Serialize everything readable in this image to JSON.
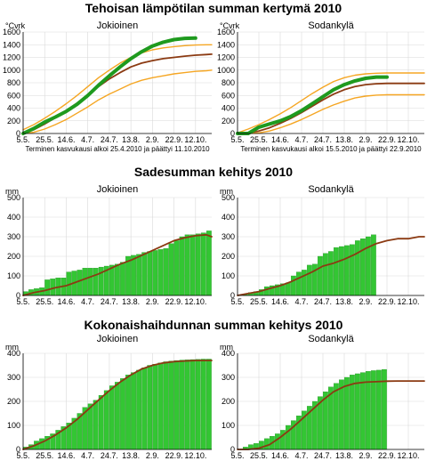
{
  "colors": {
    "green_line": "#1e9a1e",
    "brown": "#8b3a12",
    "orange": "#f5a623",
    "grid": "#d9d9d9",
    "bar": "#33c633",
    "bar_edge": "#1a8c1a",
    "axis": "#000000"
  },
  "chart_data": [
    {
      "type": "line",
      "title": "Tehoisan lämpötilan summan kertymä 2010",
      "ylabel": "°Cvrk",
      "ylim": [
        0,
        1600
      ],
      "yticks": [
        0,
        200,
        400,
        600,
        800,
        1000,
        1200,
        1400,
        1600
      ],
      "xlim": [
        0,
        175
      ],
      "xtick_labels": [
        "5.5.",
        "25.5.",
        "14.6.",
        "4.7.",
        "24.7.",
        "13.8.",
        "2.9.",
        "22.9.",
        "12.10."
      ],
      "xtick_days": [
        0,
        20,
        40,
        60,
        80,
        100,
        120,
        140,
        160
      ],
      "grid": true,
      "panels": [
        {
          "name": "Jokioinen",
          "note": "Terminen kasvukausi alkoi 25.4.2010 ja päättyi 11.10.2010",
          "series": [
            {
              "role": "mean",
              "color": "brown",
              "x": [
                0,
                10,
                20,
                30,
                40,
                50,
                60,
                70,
                80,
                90,
                100,
                110,
                120,
                130,
                140,
                150,
                160,
                170,
                175
              ],
              "y": [
                0,
                60,
                150,
                250,
                360,
                480,
                610,
                740,
                860,
                960,
                1050,
                1110,
                1150,
                1180,
                1200,
                1220,
                1235,
                1245,
                1250
              ]
            },
            {
              "role": "max",
              "color": "orange",
              "x": [
                0,
                10,
                20,
                30,
                40,
                50,
                60,
                70,
                80,
                90,
                100,
                110,
                120,
                130,
                140,
                150,
                160,
                170,
                175
              ],
              "y": [
                60,
                140,
                240,
                350,
                470,
                600,
                740,
                880,
                1000,
                1110,
                1200,
                1270,
                1320,
                1350,
                1370,
                1385,
                1395,
                1400,
                1400
              ]
            },
            {
              "role": "min",
              "color": "orange",
              "x": [
                0,
                10,
                20,
                30,
                40,
                50,
                60,
                70,
                80,
                90,
                100,
                110,
                120,
                130,
                140,
                150,
                160,
                170,
                175
              ],
              "y": [
                0,
                20,
                70,
                140,
                220,
                320,
                420,
                530,
                620,
                700,
                780,
                840,
                880,
                910,
                940,
                960,
                980,
                990,
                1000
              ]
            },
            {
              "role": "year",
              "color": "green_line",
              "x": [
                0,
                10,
                20,
                30,
                40,
                50,
                60,
                70,
                80,
                90,
                100,
                110,
                120,
                130,
                140,
                150,
                160
              ],
              "y": [
                0,
                80,
                180,
                260,
                350,
                460,
                600,
                760,
                910,
                1050,
                1180,
                1290,
                1380,
                1440,
                1480,
                1500,
                1505
              ]
            }
          ]
        },
        {
          "name": "Sodankylä",
          "note": "Terminen kasvukausi alkoi 15.5.2010 ja päättyi 22.9.2010",
          "series": [
            {
              "role": "mean",
              "color": "brown",
              "x": [
                0,
                10,
                20,
                30,
                40,
                50,
                60,
                70,
                80,
                90,
                100,
                110,
                120,
                130,
                140,
                150,
                160,
                175
              ],
              "y": [
                0,
                10,
                40,
                90,
                160,
                240,
                330,
                430,
                530,
                620,
                690,
                740,
                770,
                785,
                790,
                790,
                790,
                790
              ]
            },
            {
              "role": "max",
              "color": "orange",
              "x": [
                0,
                10,
                20,
                30,
                40,
                50,
                60,
                70,
                80,
                90,
                100,
                110,
                120,
                130,
                140,
                150,
                160,
                175
              ],
              "y": [
                10,
                70,
                140,
                220,
                310,
                410,
                520,
                630,
                730,
                820,
                880,
                920,
                940,
                950,
                955,
                955,
                955,
                955
              ]
            },
            {
              "role": "min",
              "color": "orange",
              "x": [
                0,
                10,
                20,
                30,
                40,
                50,
                60,
                70,
                80,
                90,
                100,
                110,
                120,
                130,
                140,
                150,
                160,
                175
              ],
              "y": [
                0,
                0,
                10,
                40,
                90,
                150,
                220,
                300,
                380,
                450,
                510,
                560,
                590,
                605,
                610,
                610,
                610,
                610
              ]
            },
            {
              "role": "year",
              "color": "green_line",
              "x": [
                0,
                10,
                20,
                30,
                40,
                50,
                60,
                70,
                80,
                90,
                100,
                110,
                120,
                130,
                140
              ],
              "y": [
                0,
                0,
                100,
                150,
                200,
                270,
                360,
                470,
                580,
                690,
                770,
                830,
                870,
                890,
                890
              ]
            }
          ]
        }
      ]
    },
    {
      "type": "bar",
      "title": "Sadesumman kehitys 2010",
      "ylabel": "mm",
      "ylim": [
        0,
        500
      ],
      "yticks": [
        0,
        100,
        200,
        300,
        400,
        500
      ],
      "xlim": [
        0,
        175
      ],
      "xtick_labels": [
        "5.5.",
        "25.5.",
        "14.6.",
        "4.7.",
        "24.7.",
        "13.8.",
        "2.9.",
        "22.9.",
        "12.10."
      ],
      "xtick_days": [
        0,
        20,
        40,
        60,
        80,
        100,
        120,
        140,
        160
      ],
      "grid": true,
      "panels": [
        {
          "name": "Jokioinen",
          "bar_values": [
            20,
            30,
            35,
            40,
            80,
            85,
            90,
            90,
            120,
            125,
            130,
            140,
            140,
            140,
            145,
            150,
            155,
            160,
            170,
            200,
            205,
            210,
            220,
            225,
            230,
            235,
            240,
            265,
            280,
            300,
            310,
            310,
            315,
            320,
            330
          ],
          "line": {
            "role": "mean",
            "color": "brown",
            "x": [
              0,
              10,
              20,
              30,
              40,
              50,
              60,
              70,
              80,
              90,
              100,
              110,
              120,
              130,
              140,
              150,
              160,
              170,
              175
            ],
            "y": [
              0,
              15,
              25,
              40,
              50,
              70,
              90,
              110,
              135,
              160,
              180,
              205,
              230,
              255,
              280,
              295,
              305,
              310,
              300
            ]
          }
        },
        {
          "name": "Sodankylä",
          "bar_values": [
            0,
            5,
            15,
            20,
            30,
            45,
            50,
            55,
            60,
            65,
            100,
            120,
            130,
            155,
            160,
            200,
            215,
            225,
            245,
            250,
            255,
            260,
            280,
            290,
            300,
            310
          ],
          "line": {
            "role": "mean",
            "color": "brown",
            "x": [
              0,
              10,
              20,
              30,
              40,
              50,
              60,
              70,
              80,
              90,
              100,
              110,
              120,
              130,
              140,
              150,
              160,
              170,
              175
            ],
            "y": [
              0,
              10,
              20,
              35,
              50,
              70,
              95,
              120,
              150,
              165,
              185,
              210,
              240,
              265,
              280,
              290,
              290,
              300,
              300
            ]
          }
        }
      ]
    },
    {
      "type": "bar",
      "title": "Kokonaishaihdunnan summan kehitys 2010",
      "ylabel": "mm",
      "ylim": [
        0,
        400
      ],
      "yticks": [
        0,
        100,
        200,
        300,
        400
      ],
      "xlim": [
        0,
        175
      ],
      "xtick_labels": [
        "5.5.",
        "25.5.",
        "14.6.",
        "4.7.",
        "24.7.",
        "13.8.",
        "2.9.",
        "22.9.",
        "12.10."
      ],
      "xtick_days": [
        0,
        20,
        40,
        60,
        80,
        100,
        120,
        140,
        160
      ],
      "grid": true,
      "panels": [
        {
          "name": "Jokioinen",
          "bar_values": [
            10,
            20,
            35,
            45,
            55,
            65,
            80,
            95,
            110,
            130,
            150,
            175,
            190,
            205,
            225,
            245,
            265,
            280,
            295,
            310,
            320,
            330,
            340,
            350,
            355,
            360,
            365,
            368,
            370,
            372,
            373,
            374,
            375,
            376,
            376
          ],
          "line": {
            "role": "mean",
            "color": "brown",
            "x": [
              0,
              10,
              20,
              30,
              40,
              50,
              60,
              70,
              80,
              90,
              100,
              110,
              120,
              130,
              140,
              150,
              160,
              170,
              175
            ],
            "y": [
              0,
              15,
              35,
              60,
              90,
              125,
              165,
              205,
              245,
              280,
              310,
              335,
              350,
              360,
              365,
              368,
              370,
              370,
              370
            ]
          }
        },
        {
          "name": "Sodankylä",
          "bar_values": [
            0,
            10,
            20,
            25,
            35,
            45,
            55,
            65,
            80,
            100,
            120,
            140,
            160,
            180,
            200,
            220,
            240,
            260,
            275,
            290,
            300,
            310,
            315,
            320,
            325,
            328,
            330,
            333
          ],
          "line": {
            "role": "mean",
            "color": "brown",
            "x": [
              0,
              10,
              20,
              30,
              40,
              50,
              60,
              70,
              80,
              90,
              100,
              110,
              120,
              130,
              140,
              150,
              160,
              175
            ],
            "y": [
              0,
              0,
              5,
              20,
              50,
              85,
              125,
              165,
              205,
              240,
              262,
              275,
              280,
              282,
              284,
              285,
              285,
              285
            ]
          }
        }
      ]
    }
  ]
}
